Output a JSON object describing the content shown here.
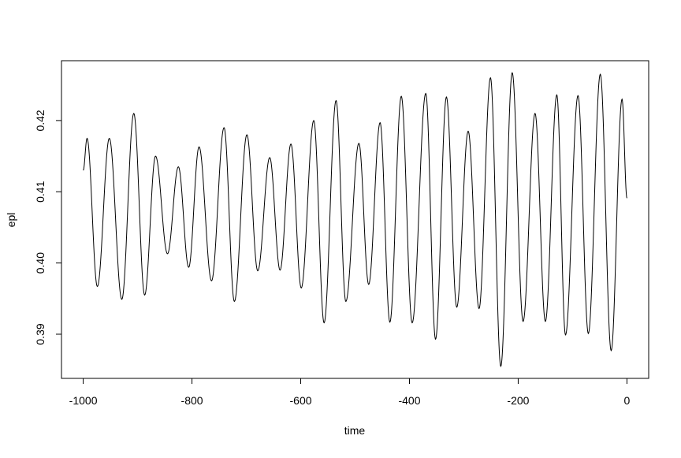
{
  "chart_data": {
    "type": "line",
    "title": "",
    "xlabel": "time",
    "ylabel": "epl",
    "xlim": [
      -1040,
      40
    ],
    "ylim": [
      0.3838,
      0.4284
    ],
    "grid": false,
    "x_ticks": [
      -1000,
      -800,
      -600,
      -400,
      -200,
      0
    ],
    "x_tick_labels": [
      "-1000",
      "-800",
      "-600",
      "-400",
      "-200",
      "0"
    ],
    "y_ticks": [
      0.39,
      0.4,
      0.41,
      0.42
    ],
    "y_tick_labels": [
      "0.39",
      "0.40",
      "0.41",
      "0.42"
    ],
    "line_color": "#000000",
    "series": [
      {
        "x": [
          -1000,
          -993,
          -974,
          -952,
          -929,
          -907,
          -887,
          -867,
          -845,
          -825,
          -806,
          -787,
          -764,
          -741,
          -722,
          -699,
          -679,
          -657,
          -638,
          -618,
          -599,
          -576,
          -557,
          -535,
          -517,
          -493,
          -475,
          -454,
          -436,
          -415,
          -395,
          -370,
          -352,
          -332,
          -313,
          -292,
          -272,
          -251,
          -232,
          -211,
          -191,
          -169,
          -150,
          -129,
          -113,
          -90,
          -71,
          -49,
          -29,
          -9,
          0
        ],
        "y": [
          0.413,
          0.4175,
          0.3967,
          0.4175,
          0.3949,
          0.421,
          0.3955,
          0.415,
          0.4013,
          0.4135,
          0.3994,
          0.4163,
          0.3975,
          0.419,
          0.3946,
          0.418,
          0.3989,
          0.4148,
          0.399,
          0.4167,
          0.3965,
          0.42,
          0.3916,
          0.4228,
          0.3946,
          0.4168,
          0.397,
          0.4197,
          0.3917,
          0.4234,
          0.3916,
          0.4238,
          0.3893,
          0.4233,
          0.3938,
          0.4185,
          0.3936,
          0.426,
          0.3855,
          0.4267,
          0.3918,
          0.421,
          0.3918,
          0.4236,
          0.3899,
          0.4235,
          0.3901,
          0.4265,
          0.3877,
          0.423,
          0.4091
        ]
      }
    ]
  }
}
